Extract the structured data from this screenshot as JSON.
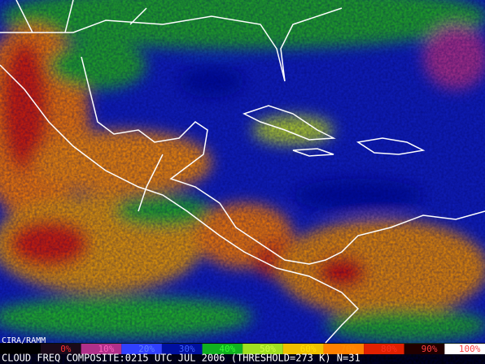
{
  "map": {
    "credit": "CIRA/RAMM",
    "caption": "CLOUD FREQ COMPOSITE:0215 UTC JUL 2006 (THRESHOLD=273 K) N=31",
    "legend": [
      {
        "label": "0%",
        "color": "#1a0a1a",
        "text_color": "#ff3030"
      },
      {
        "label": "10%",
        "color": "#b0308a",
        "text_color": "#ff60c0"
      },
      {
        "label": "20%",
        "color": "#3040ff",
        "text_color": "#6080ff"
      },
      {
        "label": "30%",
        "color": "#0010a0",
        "text_color": "#4060ff"
      },
      {
        "label": "40%",
        "color": "#10b020",
        "text_color": "#30ff30"
      },
      {
        "label": "50%",
        "color": "#a0e020",
        "text_color": "#d0ff40"
      },
      {
        "label": "60%",
        "color": "#f0c000",
        "text_color": "#ffe000"
      },
      {
        "label": "70%",
        "color": "#ff8000",
        "text_color": "#ff9000"
      },
      {
        "label": "80%",
        "color": "#e02000",
        "text_color": "#ff3020"
      },
      {
        "label": "90%",
        "color": "#200000",
        "text_color": "#ff4040"
      },
      {
        "label": "100%",
        "color": "#ffffff",
        "text_color": "#ff4040"
      }
    ]
  }
}
